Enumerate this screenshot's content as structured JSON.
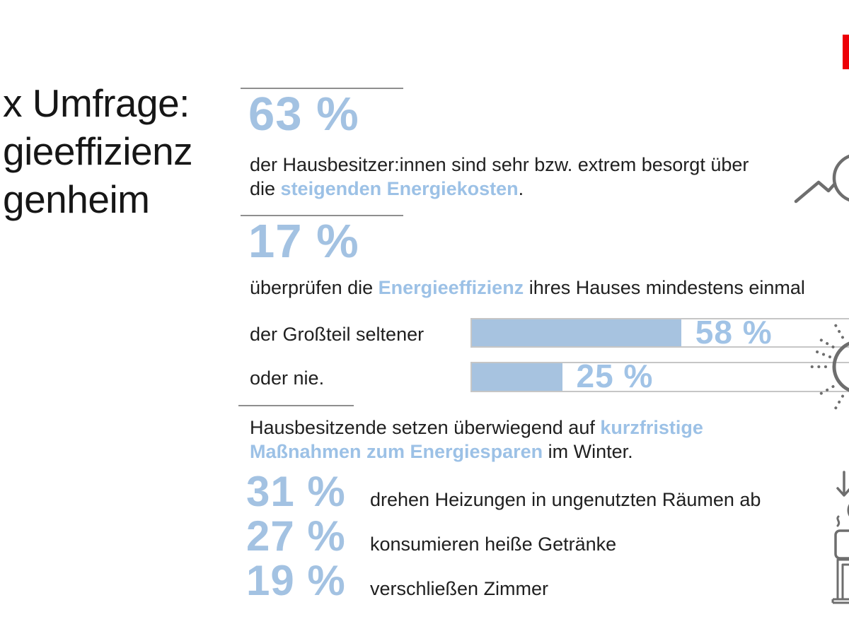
{
  "header": {
    "title_lines": [
      "x Umfrage:",
      "gieeffizienz",
      "genheim"
    ],
    "brand_block_color": "#ed0007"
  },
  "colors": {
    "number_blue": "#a3c2e2",
    "highlight_blue": "#9cc1e6",
    "bar_fill_blue": "#a7c3e0",
    "rule_gray": "#8e8e8e",
    "icon_gray": "#6e6e6e",
    "text_dark": "#202020"
  },
  "sections": {
    "worry": {
      "value": "63 %",
      "line1": "der Hausbesitzer:innen sind sehr bzw. extrem besorgt über",
      "line2_pre": "die ",
      "line2_highlight": "steigenden Energiekosten",
      "line2_post": "."
    },
    "check": {
      "value": "17 %",
      "pre": "überprüfen die ",
      "highlight": "Energieeffizienz",
      "post": " ihres Hauses mindestens einmal"
    },
    "intro": {
      "line1_pre": "Hausbesitzende setzen überwiegend auf ",
      "line1_highlight": "kurzfristige",
      "line2_highlight": "Maßnahmen zum Energiesparen",
      "line2_post": " im Winter."
    },
    "measures": [
      {
        "value": "31 %",
        "label": "drehen Heizungen in ungenutzten Räumen ab"
      },
      {
        "value": "27 %",
        "label": "konsumieren heiße Getränke"
      },
      {
        "value": "19 %",
        "label": "verschließen Zimmer"
      }
    ]
  },
  "icons": {
    "rising_costs": "zigzag-trend-line-to-euro-coin-icon",
    "energy_bulb": "euro-bulb-with-dotted-rays-icon",
    "turn_down": "arrow-down-on-dial-icon",
    "hot_drink": "steaming-mug-icon",
    "door": "door-frame-icon",
    "euro_glyph": "€"
  },
  "chart_data": [
    {
      "type": "bar",
      "orientation": "horizontal",
      "categories": [
        "der Großteil seltener",
        "oder nie."
      ],
      "values": [
        58,
        25
      ],
      "value_labels": [
        "58 %",
        "25 %"
      ],
      "unit": "%",
      "xlim": [
        0,
        100
      ],
      "legend": "none",
      "grid": false
    },
    {
      "type": "table",
      "columns": [
        "percent",
        "statement"
      ],
      "rows": [
        [
          63,
          "der Hausbesitzer:innen sind sehr bzw. extrem besorgt über die steigenden Energiekosten."
        ],
        [
          17,
          "überprüfen die Energieeffizienz ihres Hauses mindestens einmal"
        ],
        [
          58,
          "der Großteil seltener"
        ],
        [
          25,
          "oder nie."
        ],
        [
          31,
          "drehen Heizungen in ungenutzten Räumen ab"
        ],
        [
          27,
          "konsumieren heiße Getränke"
        ],
        [
          19,
          "verschließen Zimmer"
        ]
      ]
    }
  ]
}
